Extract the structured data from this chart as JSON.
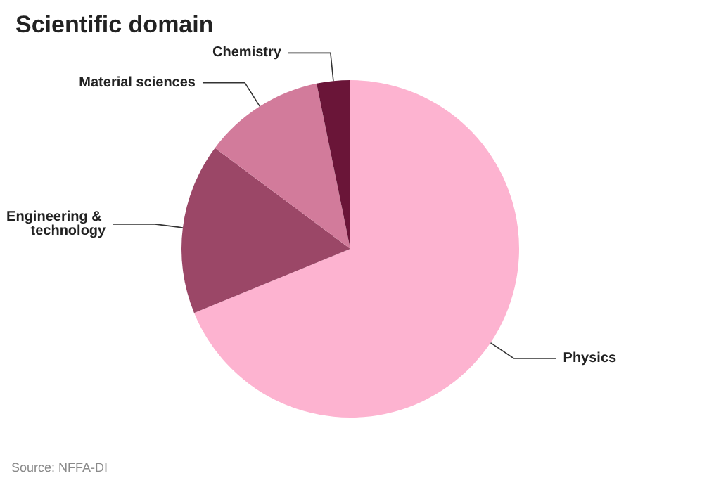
{
  "chart_data": {
    "type": "pie",
    "title": "Scientific domain",
    "categories": [
      "Physics",
      "Engineering & technology",
      "Material sciences",
      "Chemistry"
    ],
    "values": [
      68.8,
      16.4,
      11.6,
      3.2
    ],
    "colors": [
      "#fdb3d0",
      "#9b4767",
      "#d27b9b",
      "#6a1538"
    ],
    "annotations": [
      "Source: NFFA-DI"
    ]
  }
}
